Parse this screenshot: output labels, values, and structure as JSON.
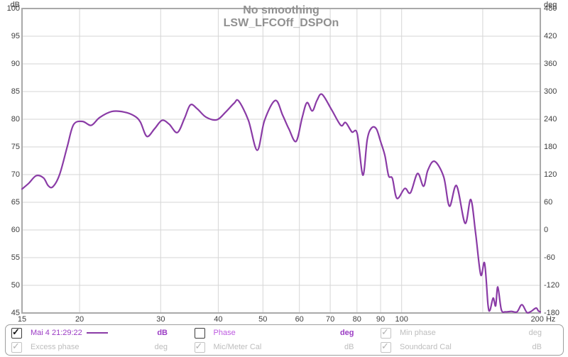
{
  "title": {
    "line1": "No smoothing",
    "line2": "LSW_LFCOff_DSPOn"
  },
  "axes": {
    "left_unit": "dB",
    "right_unit": "deg",
    "x_unit_label": "200 Hz",
    "db_ticks": [
      100,
      95,
      90,
      85,
      80,
      75,
      70,
      65,
      60,
      55,
      50,
      45
    ],
    "deg_ticks": [
      480,
      420,
      360,
      300,
      240,
      180,
      120,
      60,
      0,
      -60,
      -120,
      -180
    ],
    "freq_tick_labels": [
      15,
      20,
      30,
      40,
      50,
      60,
      70,
      80,
      90,
      100
    ],
    "freq_gridlines": [
      20,
      30,
      40,
      50,
      60,
      70,
      80,
      90,
      100,
      150
    ]
  },
  "colors": {
    "trace": "#8a3ba6",
    "grid": "#d6d6d6",
    "plot_border": "#a9a9a9",
    "title_text": "#909090",
    "tick_text": "#3d3d3d",
    "measurement_text": "#9b3cc4",
    "phase_text": "#bd5ae0",
    "disabled_text": "#bdbdbd"
  },
  "legend": {
    "rows": [
      {
        "cells": [
          {
            "name": "measurement-mai-4",
            "label": "Mai 4 21:29:22",
            "unit": "dB",
            "checked": true,
            "disabled": false,
            "sample": true
          },
          {
            "name": "phase",
            "label": "Phase",
            "unit": "deg",
            "checked": false,
            "disabled": false,
            "sample": false
          },
          {
            "name": "min-phase",
            "label": "Min phase",
            "unit": "deg",
            "checked": true,
            "disabled": true,
            "sample": false
          }
        ]
      },
      {
        "cells": [
          {
            "name": "excess-phase",
            "label": "Excess phase",
            "unit": "deg",
            "checked": true,
            "disabled": true,
            "sample": false
          },
          {
            "name": "mic-meter-cal",
            "label": "Mic/Meter Cal",
            "unit": "dB",
            "checked": true,
            "disabled": true,
            "sample": false
          },
          {
            "name": "soundcard-cal",
            "label": "Soundcard Cal",
            "unit": "dB",
            "checked": true,
            "disabled": true,
            "sample": false
          }
        ]
      }
    ]
  },
  "chart_data": {
    "type": "line",
    "title": "No smoothing",
    "subtitle": "LSW_LFCOff_DSPOn",
    "x_scale": "log",
    "xlim": [
      15,
      200
    ],
    "xlabel": "Hz",
    "ylabel": "dB",
    "ylim": [
      45,
      100
    ],
    "y2label": "deg",
    "y2lim": [
      -180,
      480
    ],
    "grid": true,
    "legend_position": "bottom",
    "series": [
      {
        "name": "Mai 4 21:29:22",
        "unit": "dB",
        "color": "#8a3ba6",
        "points": [
          [
            15.0,
            67.4
          ],
          [
            15.5,
            68.4
          ],
          [
            16.1,
            69.8
          ],
          [
            16.7,
            69.4
          ],
          [
            17.1,
            68.0
          ],
          [
            17.5,
            67.8
          ],
          [
            18.1,
            70.0
          ],
          [
            18.8,
            75.0
          ],
          [
            19.4,
            79.0
          ],
          [
            20.3,
            79.6
          ],
          [
            21.2,
            78.9
          ],
          [
            22.1,
            80.3
          ],
          [
            23.5,
            81.4
          ],
          [
            25.0,
            81.3
          ],
          [
            26.3,
            80.6
          ],
          [
            27.1,
            79.5
          ],
          [
            28.0,
            76.9
          ],
          [
            29.1,
            78.3
          ],
          [
            30.2,
            79.8
          ],
          [
            31.3,
            79.1
          ],
          [
            32.6,
            77.6
          ],
          [
            33.8,
            80.2
          ],
          [
            34.8,
            82.6
          ],
          [
            36.0,
            81.9
          ],
          [
            37.6,
            80.4
          ],
          [
            39.7,
            79.9
          ],
          [
            41.5,
            81.3
          ],
          [
            43.3,
            82.9
          ],
          [
            44.3,
            83.3
          ],
          [
            46.5,
            79.8
          ],
          [
            48.6,
            74.4
          ],
          [
            50.4,
            79.8
          ],
          [
            53.2,
            83.4
          ],
          [
            55.2,
            80.7
          ],
          [
            56.9,
            78.3
          ],
          [
            59.0,
            76.0
          ],
          [
            60.8,
            80.2
          ],
          [
            62.3,
            83.0
          ],
          [
            64.0,
            81.5
          ],
          [
            65.5,
            83.4
          ],
          [
            67.2,
            84.5
          ],
          [
            70.5,
            81.7
          ],
          [
            73.8,
            78.9
          ],
          [
            75.6,
            79.4
          ],
          [
            78.0,
            77.7
          ],
          [
            80.1,
            77.4
          ],
          [
            82.4,
            69.9
          ],
          [
            84.2,
            76.3
          ],
          [
            86.0,
            78.4
          ],
          [
            88.1,
            78.3
          ],
          [
            90.0,
            76.0
          ],
          [
            92.0,
            73.4
          ],
          [
            93.7,
            69.8
          ],
          [
            95.5,
            69.3
          ],
          [
            97.7,
            65.7
          ],
          [
            101.6,
            67.5
          ],
          [
            104.5,
            66.7
          ],
          [
            108.3,
            70.2
          ],
          [
            111.6,
            67.9
          ],
          [
            114.0,
            70.8
          ],
          [
            117.9,
            72.4
          ],
          [
            123.4,
            69.6
          ],
          [
            127.0,
            64.3
          ],
          [
            131.6,
            68.0
          ],
          [
            137.3,
            61.2
          ],
          [
            141.3,
            65.5
          ],
          [
            144.8,
            59.3
          ],
          [
            148.5,
            51.9
          ],
          [
            151.4,
            54.0
          ],
          [
            154.0,
            46.5
          ],
          [
            155.5,
            45.5
          ],
          [
            158.0,
            47.7
          ],
          [
            160.0,
            46.3
          ],
          [
            161.7,
            49.7
          ],
          [
            164.6,
            45.6
          ],
          [
            168.0,
            45.2
          ],
          [
            173.0,
            45.3
          ],
          [
            178.0,
            45.2
          ],
          [
            182.4,
            46.5
          ],
          [
            187.0,
            45.1
          ],
          [
            191.0,
            45.3
          ],
          [
            195.8,
            45.9
          ],
          [
            198.0,
            45.4
          ],
          [
            200.0,
            45.2
          ]
        ]
      }
    ]
  }
}
